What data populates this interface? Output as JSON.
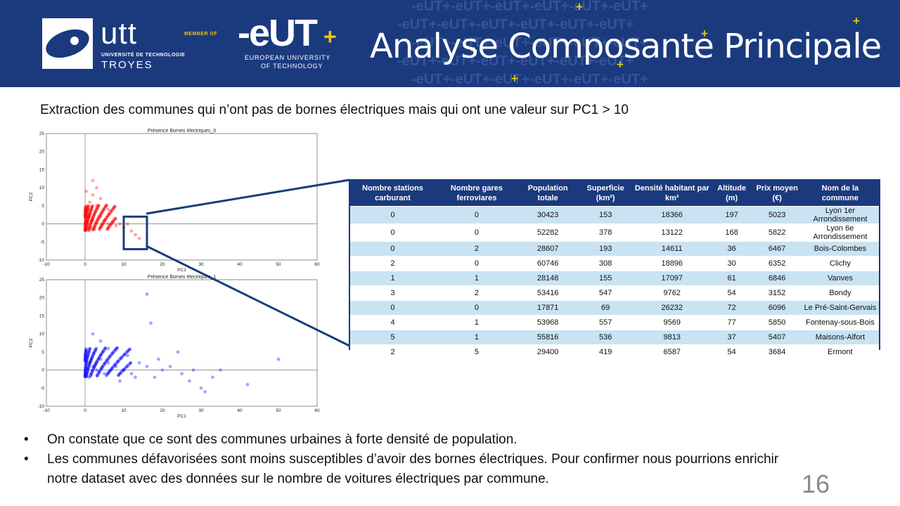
{
  "header": {
    "utt_name": "utt",
    "utt_sub": "UNIVERSITÉ DE TECHNOLOGIE",
    "utt_city": "TROYES",
    "member_label": "MEMBER OF",
    "eut_logo": "-eUT",
    "eut_plus": "+",
    "eut_sub1": "EUROPEAN UNIVERSITY",
    "eut_sub2": "OF TECHNOLOGY",
    "title": "Analyse Composante Principale",
    "pattern_text": "-eUT+-eUT+-eUT+-eUT+-eUT+-eUT+"
  },
  "subtitle": "Extraction des communes qui n’ont pas de bornes électriques mais qui ont une valeur sur PC1 > 10",
  "colors": {
    "header_bg": "#1b3a7e",
    "accent_yellow": "#f5c400",
    "row_highlight": "#c9e3f2",
    "series0": "#ff0000",
    "series1": "#0000ff"
  },
  "chart_data": [
    {
      "type": "scatter",
      "title": "Présence Bornes électriques_0",
      "xlabel": "PC1",
      "ylabel": "PC2",
      "xlim": [
        -10,
        60
      ],
      "ylim": [
        -10,
        25
      ],
      "xticks": [
        -10,
        0,
        10,
        20,
        30,
        40,
        50,
        60
      ],
      "yticks": [
        -10,
        -5,
        0,
        5,
        10,
        15,
        20,
        25
      ],
      "color": "#ff0000",
      "points": [
        [
          0.5,
          0.5
        ],
        [
          1,
          2
        ],
        [
          1.5,
          -1
        ],
        [
          2,
          1
        ],
        [
          0.8,
          4
        ],
        [
          1.2,
          6
        ],
        [
          2,
          8
        ],
        [
          3,
          5
        ],
        [
          4,
          2
        ],
        [
          5,
          1
        ],
        [
          6,
          0
        ],
        [
          7,
          0.5
        ],
        [
          8,
          -0.5
        ],
        [
          3,
          10
        ],
        [
          2,
          12
        ],
        [
          9,
          0
        ],
        [
          10,
          -1
        ],
        [
          12,
          -2
        ],
        [
          13,
          -3
        ],
        [
          14,
          -4
        ],
        [
          11,
          0
        ],
        [
          6,
          4
        ],
        [
          4,
          7
        ],
        [
          2.5,
          -1.5
        ],
        [
          1,
          -1.8
        ],
        [
          0.3,
          9
        ]
      ],
      "highlight_box": {
        "x": [
          10,
          16
        ],
        "y": [
          -7,
          2
        ]
      }
    },
    {
      "type": "scatter",
      "title": "Présence Bornes électriques_1",
      "xlabel": "PC1",
      "ylabel": "PC2",
      "xlim": [
        -10,
        60
      ],
      "ylim": [
        -10,
        25
      ],
      "xticks": [
        -10,
        0,
        10,
        20,
        30,
        40,
        50,
        60
      ],
      "yticks": [
        -10,
        -5,
        0,
        5,
        10,
        15,
        20,
        25
      ],
      "color": "#0000ff",
      "points": [
        [
          0.5,
          0.5
        ],
        [
          1,
          2
        ],
        [
          2,
          1
        ],
        [
          3,
          0
        ],
        [
          4,
          3
        ],
        [
          5,
          -1
        ],
        [
          6,
          2
        ],
        [
          8,
          1
        ],
        [
          10,
          0
        ],
        [
          12,
          -1
        ],
        [
          14,
          2
        ],
        [
          16,
          1
        ],
        [
          18,
          -2
        ],
        [
          20,
          0
        ],
        [
          22,
          1
        ],
        [
          25,
          -1
        ],
        [
          28,
          0
        ],
        [
          30,
          -5
        ],
        [
          31,
          -6
        ],
        [
          33,
          -2
        ],
        [
          35,
          0
        ],
        [
          42,
          -4
        ],
        [
          50,
          3
        ],
        [
          16,
          21
        ],
        [
          17,
          13
        ],
        [
          2,
          10
        ],
        [
          4,
          8
        ],
        [
          6,
          6
        ],
        [
          9,
          -3
        ],
        [
          11,
          4
        ],
        [
          13,
          -2
        ],
        [
          19,
          3
        ],
        [
          24,
          5
        ],
        [
          27,
          -3
        ],
        [
          1,
          -2
        ]
      ]
    }
  ],
  "table": {
    "headers": [
      "Nombre stations carburant",
      "Nombre gares ferroviares",
      "Population totale",
      "Superficie (km²)",
      "Densité habitant par km²",
      "Altitude (m)",
      "Prix moyen (€)",
      "Nom de la commune"
    ],
    "rows": [
      [
        "0",
        "0",
        "30423",
        "153",
        "18366",
        "197",
        "5023",
        "Lyon 1er Arrondissement"
      ],
      [
        "0",
        "0",
        "52282",
        "378",
        "13122",
        "168",
        "5822",
        "Lyon 6e Arrondissement"
      ],
      [
        "0",
        "2",
        "28607",
        "193",
        "14611",
        "36",
        "6467",
        "Bois-Colombes"
      ],
      [
        "2",
        "0",
        "60746",
        "308",
        "18896",
        "30",
        "6352",
        "Clichy"
      ],
      [
        "1",
        "1",
        "28148",
        "155",
        "17097",
        "61",
        "6846",
        "Vanves"
      ],
      [
        "3",
        "2",
        "53416",
        "547",
        "9762",
        "54",
        "3152",
        "Bondy"
      ],
      [
        "0",
        "0",
        "17871",
        "69",
        "26232",
        "72",
        "6096",
        "Le Pré-Saint-Gervais"
      ],
      [
        "4",
        "1",
        "53968",
        "557",
        "9569",
        "77",
        "5850",
        "Fontenay-sous-Bois"
      ],
      [
        "5",
        "1",
        "55816",
        "536",
        "9813",
        "37",
        "5407",
        "Maisons-Alfort"
      ],
      [
        "2",
        "5",
        "29400",
        "419",
        "6587",
        "54",
        "3684",
        "Ermont"
      ]
    ]
  },
  "bullets": [
    "On constate que ce sont des communes urbaines à forte densité de population.",
    "Les communes défavorisées sont moins susceptibles d’avoir des bornes électriques. Pour confirmer nous pourrions enrichir notre dataset avec des données sur le nombre de voitures électriques par commune."
  ],
  "bullet_glyph": "•",
  "page_number": "16"
}
